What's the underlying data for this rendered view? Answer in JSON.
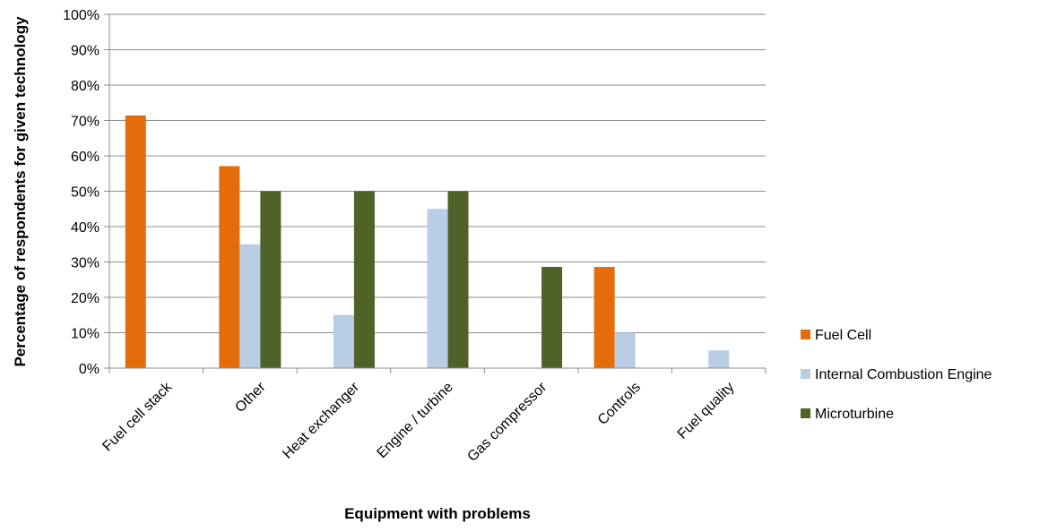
{
  "chart_data": {
    "type": "bar",
    "title": "",
    "xlabel": "Equipment with problems",
    "ylabel": "Percentage of respondents for given technology",
    "ylim": [
      0,
      100
    ],
    "yticks": [
      "0%",
      "10%",
      "20%",
      "30%",
      "40%",
      "50%",
      "60%",
      "70%",
      "80%",
      "90%",
      "100%"
    ],
    "grid": true,
    "legend": "right",
    "categories": [
      "Fuel cell stack",
      "Other",
      "Heat exchanger",
      "Engine / turbine",
      "Gas compressor",
      "Controls",
      "Fuel quality"
    ],
    "series": [
      {
        "name": "Fuel Cell",
        "color": "#E46C0A",
        "values": [
          71.4,
          57.1,
          0,
          0,
          0,
          28.6,
          0
        ]
      },
      {
        "name": "Internal Combustion Engine",
        "color": "#B9CDE5",
        "values": [
          0,
          35,
          15,
          45,
          0,
          10,
          5
        ]
      },
      {
        "name": "Microturbine",
        "color": "#4F6228",
        "values": [
          0,
          50,
          50,
          50,
          28.6,
          0,
          0
        ]
      }
    ]
  }
}
